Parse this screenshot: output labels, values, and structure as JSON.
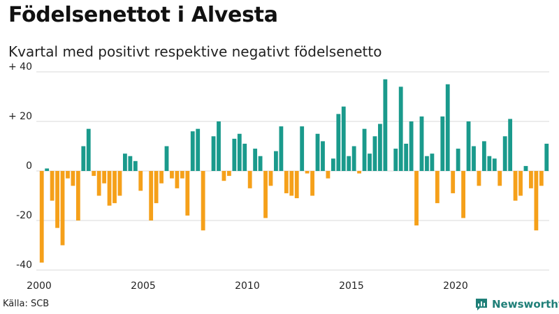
{
  "header": {
    "title": "Födelsenettot i Alvesta",
    "subtitle": "Kvartal med positivt respektive negativt födelsenetto"
  },
  "footer": {
    "source": "Källa: SCB",
    "brand": "Newsworthy"
  },
  "colors": {
    "positive": "#1a9a8c",
    "negative": "#f5a01a",
    "grid": "#d9d9d9",
    "brand": "#1f7f78"
  },
  "chart_data": {
    "type": "bar",
    "title": "Födelsenettot i Alvesta",
    "subtitle": "Kvartal med positivt respektive negativt födelsenetto",
    "xlabel": "",
    "ylabel": "",
    "x_start": 2000,
    "periods_per_year": 4,
    "ylim": [
      -40,
      40
    ],
    "y_ticks": [
      40,
      20,
      0,
      -20,
      -40
    ],
    "y_tick_labels": [
      "+ 40",
      "+ 20",
      "0",
      "-20",
      "-40"
    ],
    "x_ticks": [
      2000,
      2005,
      2010,
      2015,
      2020
    ],
    "x_tick_labels": [
      "2000",
      "2005",
      "2010",
      "2015",
      "2020"
    ],
    "grid": true,
    "values": [
      -37,
      1,
      -12,
      -23,
      -30,
      -3,
      -6,
      -20,
      10,
      17,
      -2,
      -10,
      -5,
      -14,
      -13,
      -10,
      7,
      6,
      4,
      -8,
      0,
      -20,
      -13,
      -5,
      10,
      -3,
      -7,
      -3,
      -18,
      16,
      17,
      -24,
      0,
      14,
      20,
      -4,
      -2,
      13,
      15,
      11,
      -7,
      9,
      6,
      -19,
      -6,
      8,
      18,
      -9,
      -10,
      -11,
      18,
      -1,
      -10,
      15,
      12,
      -3,
      5,
      23,
      26,
      6,
      10,
      -1,
      17,
      7,
      14,
      19,
      37,
      0,
      9,
      34,
      11,
      20,
      -22,
      22,
      6,
      7,
      -13,
      22,
      35,
      -9,
      9,
      -19,
      20,
      10,
      -6,
      12,
      6,
      5,
      -6,
      14,
      21,
      -12,
      -10,
      2,
      -7,
      -24,
      -6,
      11
    ]
  }
}
